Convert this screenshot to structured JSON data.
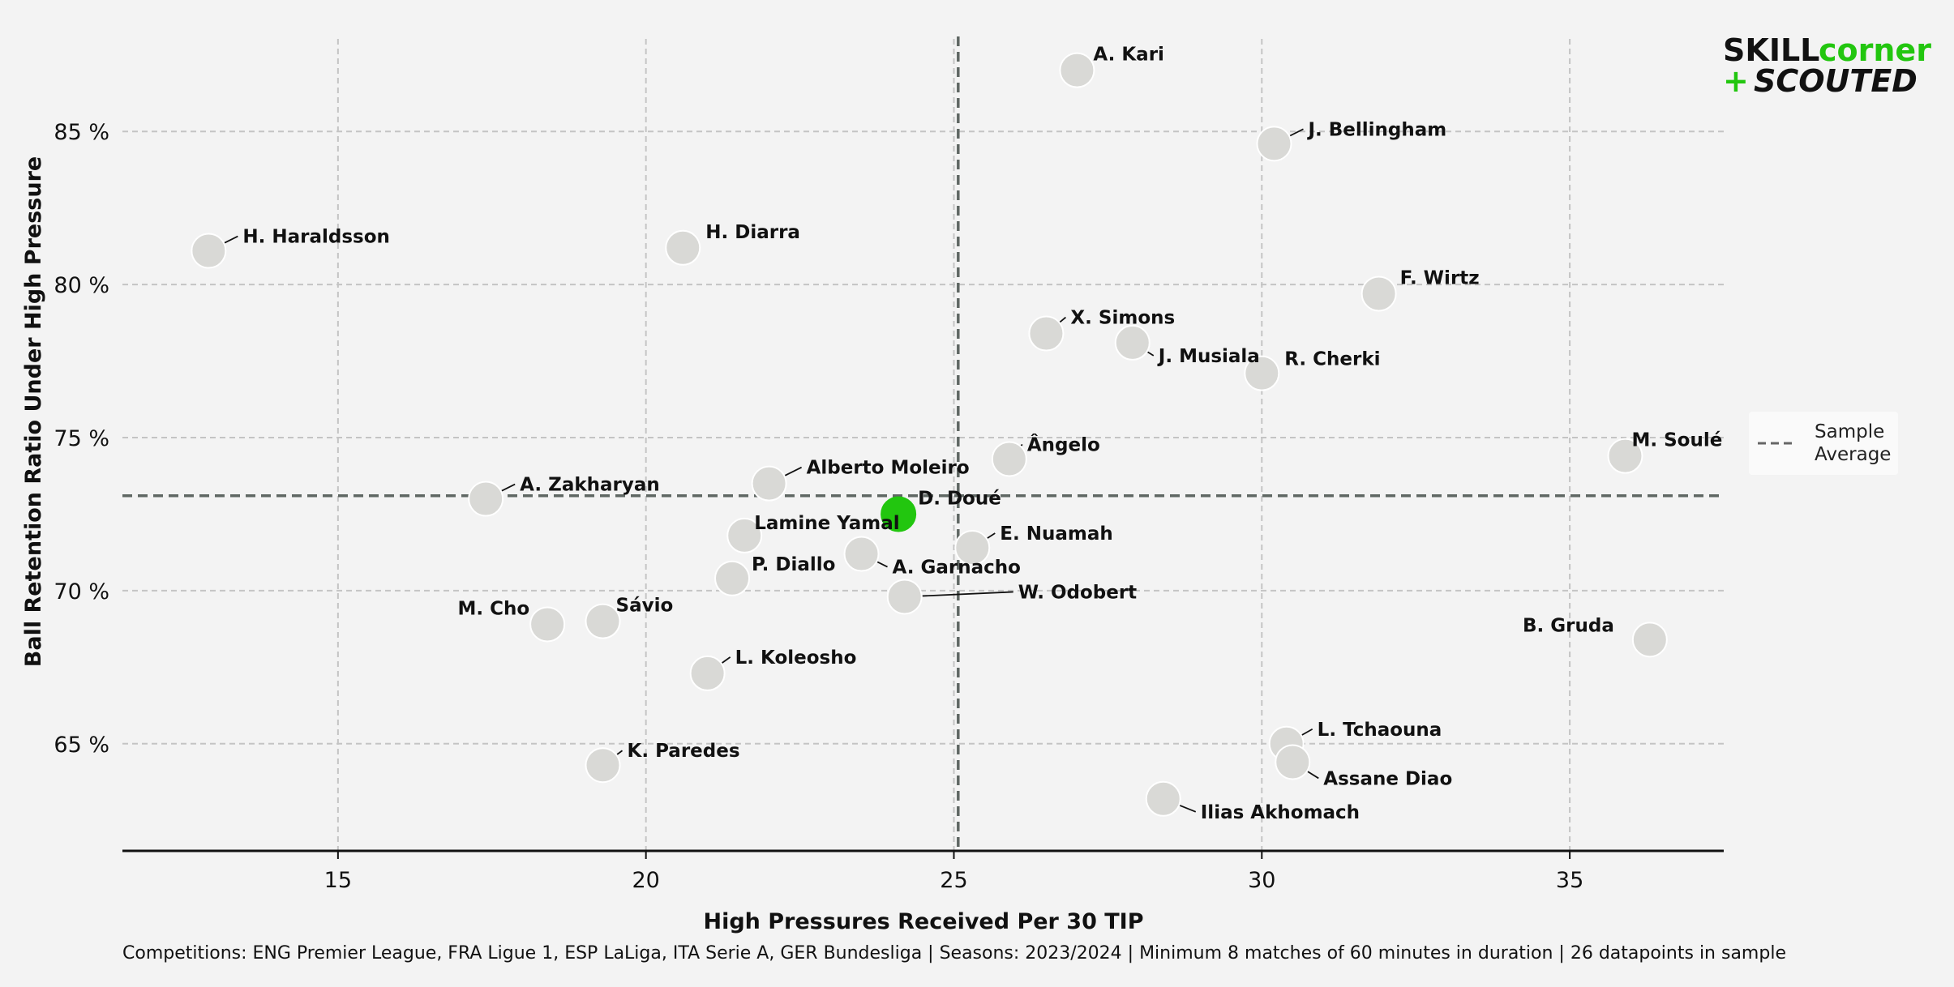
{
  "chart_data": {
    "type": "scatter",
    "xlabel": "High Pressures Received Per 30 TIP",
    "ylabel": "Ball Retention Ratio Under High Pressure",
    "xlim": [
      11.5,
      37.5
    ],
    "ylim": [
      61.5,
      88.5
    ],
    "xticks": [
      15,
      20,
      25,
      30,
      35
    ],
    "yticks": [
      65,
      70,
      75,
      80,
      85
    ],
    "ytick_labels": [
      "65 %",
      "70 %",
      "75 %",
      "80 %",
      "85 %"
    ],
    "sample_average": {
      "x": 25.07,
      "y": 73.1
    },
    "legend": {
      "label_line1": "Sample",
      "label_line2": "Average",
      "placement": "right"
    },
    "highlight_color": "#22c60f",
    "point_color": "#d9d9d6",
    "points": [
      {
        "name": "A. Kari",
        "x": 27.0,
        "y": 87.0
      },
      {
        "name": "J. Bellingham",
        "x": 30.2,
        "y": 84.6
      },
      {
        "name": "H. Haraldsson",
        "x": 12.9,
        "y": 81.1
      },
      {
        "name": "H. Diarra",
        "x": 20.6,
        "y": 81.2
      },
      {
        "name": "F. Wirtz",
        "x": 31.9,
        "y": 79.7
      },
      {
        "name": "X. Simons",
        "x": 26.5,
        "y": 78.4
      },
      {
        "name": "J. Musiala",
        "x": 27.9,
        "y": 78.1
      },
      {
        "name": "R. Cherki",
        "x": 30.0,
        "y": 77.1
      },
      {
        "name": "M. Soulé",
        "x": 35.9,
        "y": 74.4
      },
      {
        "name": "Ângelo",
        "x": 25.9,
        "y": 74.3
      },
      {
        "name": "Alberto Moleiro",
        "x": 22.0,
        "y": 73.5
      },
      {
        "name": "A. Zakharyan",
        "x": 17.4,
        "y": 73.0
      },
      {
        "name": "D. Doué",
        "x": 24.1,
        "y": 72.5,
        "highlight": true
      },
      {
        "name": "Lamine Yamal",
        "x": 21.6,
        "y": 71.8
      },
      {
        "name": "E. Nuamah",
        "x": 25.3,
        "y": 71.4
      },
      {
        "name": "A. Garnacho",
        "x": 23.5,
        "y": 71.2
      },
      {
        "name": "P. Diallo",
        "x": 21.4,
        "y": 70.4
      },
      {
        "name": "W. Odobert",
        "x": 24.2,
        "y": 69.8
      },
      {
        "name": "Sávio",
        "x": 19.3,
        "y": 69.0
      },
      {
        "name": "M. Cho",
        "x": 18.4,
        "y": 68.9
      },
      {
        "name": "B. Gruda",
        "x": 36.3,
        "y": 68.4
      },
      {
        "name": "L. Koleosho",
        "x": 21.0,
        "y": 67.3
      },
      {
        "name": "L. Tchaouna",
        "x": 30.4,
        "y": 65.0
      },
      {
        "name": "Assane Diao",
        "x": 30.5,
        "y": 64.4
      },
      {
        "name": "K. Paredes",
        "x": 19.3,
        "y": 64.3
      },
      {
        "name": "Ilias Akhomach",
        "x": 28.4,
        "y": 63.2
      }
    ]
  },
  "footer": "Competitions: ENG Premier League, FRA Ligue 1, ESP LaLiga, ITA Serie A, GER Bundesliga | Seasons: 2023/2024 | Minimum 8 matches of 60 minutes in duration | 26 datapoints in sample",
  "logo": {
    "skill": "SKILL",
    "corner": "corner",
    "plus": "+",
    "scouted": "SCOUTED",
    "skill_color": "#111111",
    "corner_color": "#22c60f"
  }
}
